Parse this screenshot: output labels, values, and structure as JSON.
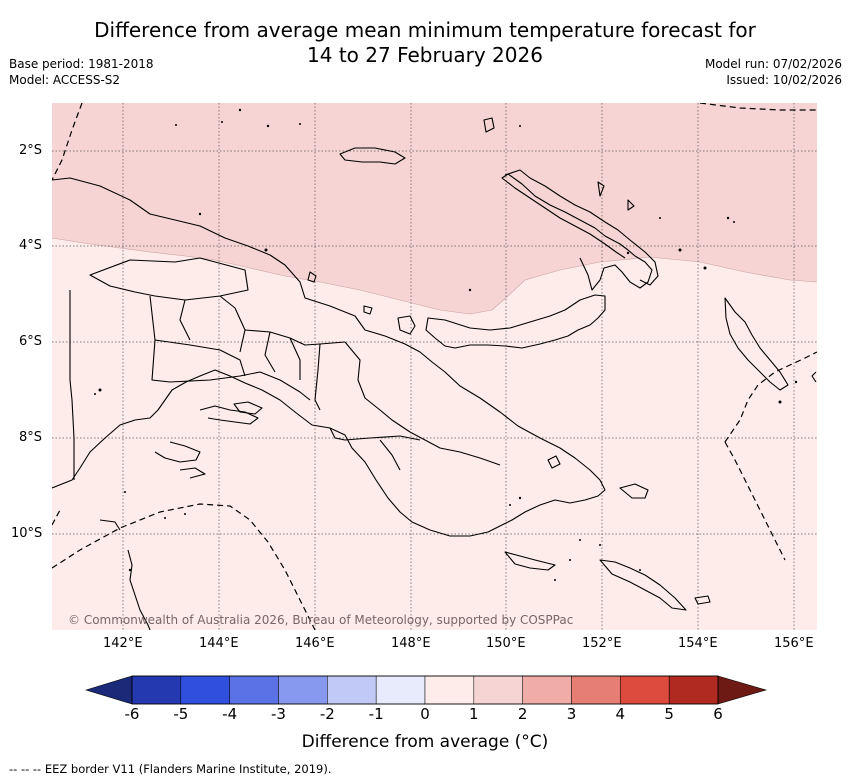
{
  "title_line1": "Difference from average mean minimum temperature forecast for",
  "title_line2": "14 to 27 February 2026",
  "base_period": "Base period: 1981-2018",
  "model": "Model: ACCESS-S2",
  "model_run": "Model run: 07/02/2026",
  "issued": "Issued: 10/02/2026",
  "copyright": "© Commonwealth of Australia 2026, Bureau of Meteorology, supported by COSPPac",
  "map": {
    "lat_ticks": [
      "2°S",
      "4°S",
      "6°S",
      "8°S",
      "10°S"
    ],
    "lon_ticks": [
      "142°E",
      "144°E",
      "146°E",
      "148°E",
      "150°E",
      "152°E",
      "154°E",
      "156°E"
    ]
  },
  "colorbar": {
    "title": "Difference from average (°C)",
    "tick_labels": [
      "-6",
      "-5",
      "-4",
      "-3",
      "-2",
      "-1",
      "0",
      "1",
      "2",
      "3",
      "4",
      "5",
      "6"
    ],
    "colors": {
      "below_min": "#1a2a78",
      "bins": [
        "#2438b0",
        "#2f4fdc",
        "#5a72e6",
        "#8699ee",
        "#c1c9f6",
        "#e8ebfb",
        "#fdecea",
        "#f6d4d3",
        "#f0aca6",
        "#e77e74",
        "#dd4a3e",
        "#b02a22"
      ],
      "above_max": "#6e1a14"
    }
  },
  "fill_colors": {
    "zero_to_one": "#fdecea",
    "one_to_two": "#f6d4d3"
  },
  "footer": "--  --  -- EEZ border V11 (Flanders Marine Institute, 2019)."
}
